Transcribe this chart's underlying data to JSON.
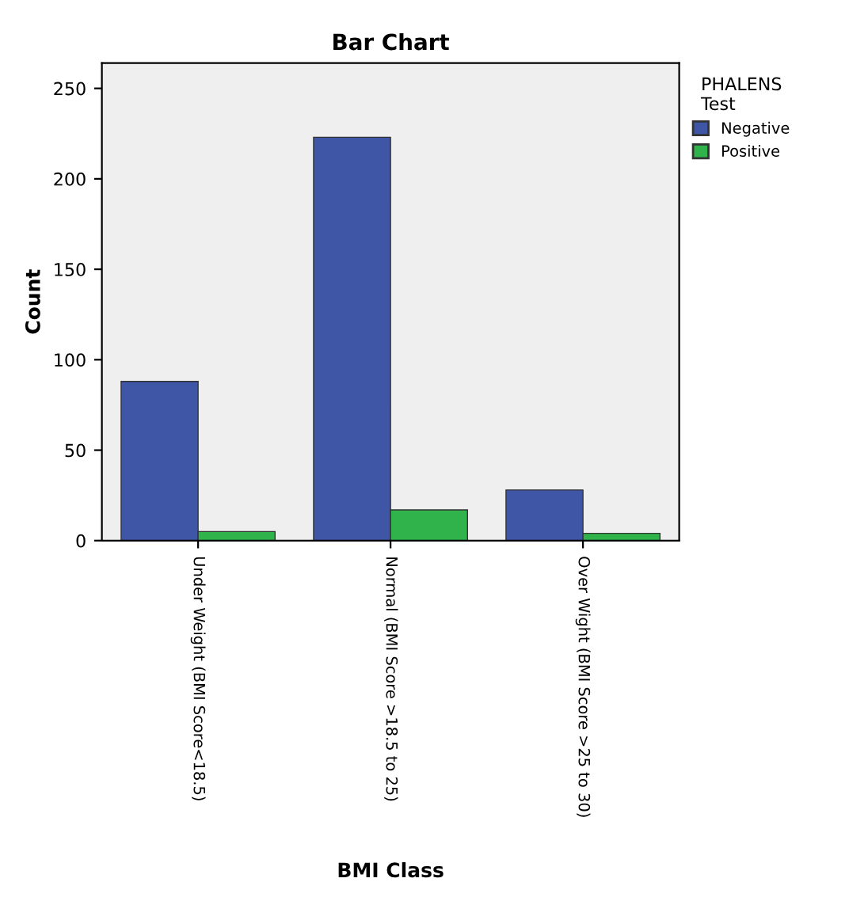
{
  "chart_data": {
    "type": "bar",
    "title": "Bar Chart",
    "xlabel": "BMI Class",
    "ylabel": "Count",
    "legend_title": "PHALENS\nTest",
    "categories": [
      "Under Weight (BMI Score<18.5)",
      "Normal (BMI Score >18.5 to 25)",
      "Over Wight (BMI Score >25 to 30)"
    ],
    "series": [
      {
        "name": "Negative",
        "color": "#3f55a6",
        "values": [
          88,
          223,
          28
        ]
      },
      {
        "name": "Positive",
        "color": "#2fb34a",
        "values": [
          5,
          17,
          4
        ]
      }
    ],
    "ylim": [
      0,
      264
    ],
    "yticks": [
      0,
      50,
      100,
      150,
      200,
      250
    ],
    "grid": false,
    "legend": "top right"
  }
}
